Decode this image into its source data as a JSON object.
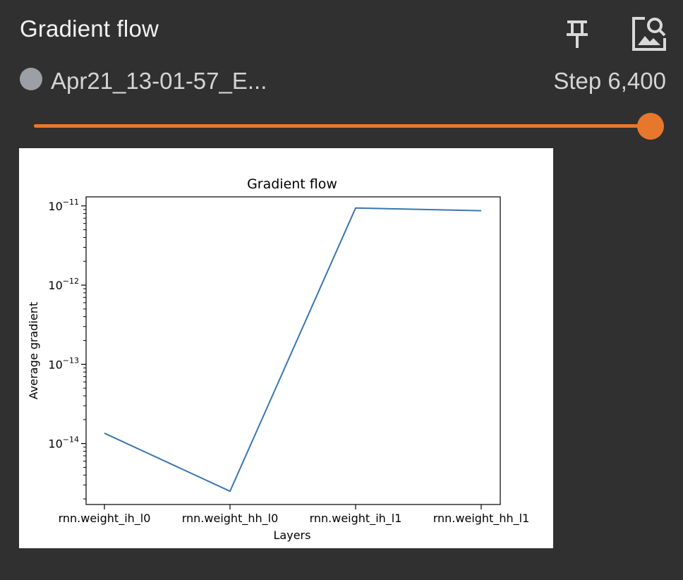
{
  "card": {
    "title": "Gradient flow",
    "pin_icon": "pin-icon",
    "image_icon": "image-search-icon"
  },
  "run": {
    "name": "Apr21_13-01-57_E...",
    "step_label": "Step 6,400",
    "dot_color": "#9aa0a6"
  },
  "slider": {
    "position_fraction": 1.0,
    "color": "#e8772e"
  },
  "chart_data": {
    "type": "line",
    "title": "Gradient flow",
    "xlabel": "Layers",
    "ylabel": "Average gradient",
    "yscale": "log",
    "ylim": [
      1.7e-15,
      1.3e-11
    ],
    "categories": [
      "rnn.weight_ih_l0",
      "rnn.weight_hh_l0",
      "rnn.weight_ih_l1",
      "rnn.weight_hh_l1"
    ],
    "y_ticks": [
      {
        "base": "10",
        "exp": "−14",
        "value": 1e-14
      },
      {
        "base": "10",
        "exp": "−13",
        "value": 1e-13
      },
      {
        "base": "10",
        "exp": "−12",
        "value": 1e-12
      },
      {
        "base": "10",
        "exp": "−11",
        "value": 1e-11
      }
    ],
    "series": [
      {
        "values": [
          1.35e-14,
          2.5e-15,
          9.4e-12,
          8.7e-12
        ],
        "color": "#3a75b0"
      }
    ],
    "grid": false,
    "legend": false
  }
}
